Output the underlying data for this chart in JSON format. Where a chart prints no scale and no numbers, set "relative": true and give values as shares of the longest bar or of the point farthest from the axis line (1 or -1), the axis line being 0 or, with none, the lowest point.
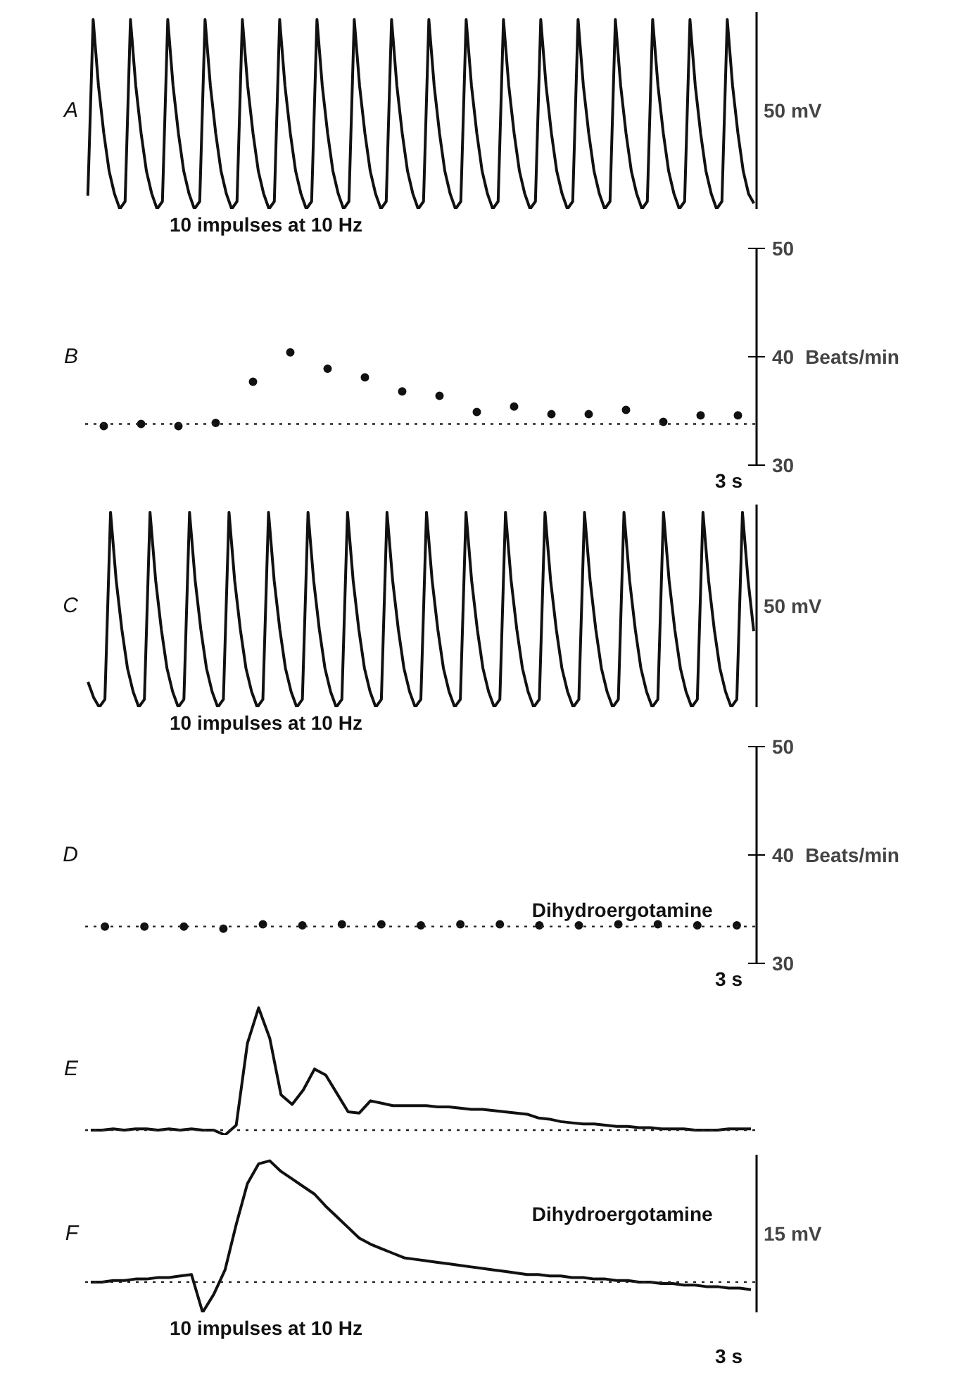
{
  "chart_data": [
    {
      "type": "line",
      "title": "A",
      "ylabel": "50 mV",
      "relative": true,
      "tick_labels": false,
      "annotations": [
        "10 impulses at 10 Hz"
      ],
      "categories": [
        null,
        null,
        null,
        null,
        null,
        null,
        null,
        null,
        null,
        null,
        null,
        null,
        null,
        null,
        null,
        null,
        null,
        null,
        null,
        null,
        null,
        null,
        null,
        null,
        null,
        null,
        null,
        null,
        null,
        null,
        null,
        null,
        null,
        null,
        null,
        null,
        null,
        null,
        null,
        null,
        null,
        null,
        null,
        null,
        null,
        null,
        null,
        null,
        null,
        null,
        null,
        null,
        null,
        null,
        null,
        null,
        null,
        null,
        null,
        null,
        null,
        null,
        null,
        null,
        null,
        null,
        null,
        null,
        null,
        null,
        null,
        null,
        null,
        null,
        null,
        null,
        null,
        null,
        null,
        null,
        null,
        null,
        null,
        null,
        null,
        null,
        null,
        null,
        null,
        null,
        null,
        null,
        null,
        null,
        null,
        null,
        null,
        null,
        null,
        null,
        null,
        null,
        null,
        null,
        null,
        null,
        null,
        null,
        null,
        null,
        null,
        null,
        null,
        null,
        null,
        null,
        null,
        null,
        null,
        null,
        null,
        null,
        null,
        null,
        null,
        null
      ],
      "series": [
        {
          "color": "#111111",
          "values": [
            0.07,
            1,
            0.65,
            0.4,
            0.2,
            0.08,
            0,
            0.04,
            1,
            0.65,
            0.4,
            0.2,
            0.08,
            0,
            0.04,
            1,
            0.65,
            0.4,
            0.2,
            0.08,
            0,
            0.04,
            1,
            0.65,
            0.4,
            0.2,
            0.08,
            0,
            0.04,
            1,
            0.65,
            0.4,
            0.2,
            0.08,
            0,
            0.04,
            1,
            0.65,
            0.4,
            0.2,
            0.08,
            0,
            0.04,
            1,
            0.65,
            0.4,
            0.2,
            0.08,
            0,
            0.04,
            1,
            0.65,
            0.4,
            0.2,
            0.08,
            0,
            0.04,
            1,
            0.65,
            0.4,
            0.2,
            0.08,
            0,
            0.04,
            1,
            0.65,
            0.4,
            0.2,
            0.08,
            0,
            0.04,
            1,
            0.65,
            0.4,
            0.2,
            0.08,
            0,
            0.04,
            1,
            0.65,
            0.4,
            0.2,
            0.08,
            0,
            0.04,
            1,
            0.65,
            0.4,
            0.2,
            0.08,
            0,
            0.04,
            1,
            0.65,
            0.4,
            0.2,
            0.08,
            0,
            0.04,
            1,
            0.65,
            0.4,
            0.2,
            0.08,
            0,
            0.04,
            1,
            0.65,
            0.4,
            0.2,
            0.08,
            0,
            0.04,
            1,
            0.65,
            0.4,
            0.2,
            0.08,
            0,
            0.04,
            1,
            0.65,
            0.4,
            0.2,
            0.08,
            0.03
          ]
        }
      ]
    },
    {
      "type": "scatter",
      "title": "B",
      "ylabel": "Beats/min",
      "ylim": [
        30,
        50
      ],
      "yticks": [
        30,
        40,
        50
      ],
      "tick_labels": "y",
      "marker": "circle",
      "annotations": [
        "3 s"
      ],
      "ref_lines": [
        {
          "axis": "y",
          "value": 33.8,
          "line_style": "dotted"
        }
      ],
      "categories": [
        null,
        null,
        null,
        null,
        null,
        null,
        null,
        null,
        null,
        null,
        null,
        null,
        null,
        null,
        null,
        null,
        null,
        null
      ],
      "series": [
        {
          "color": "#111111",
          "values": [
            33.6,
            33.8,
            33.6,
            33.9,
            37.7,
            40.4,
            38.9,
            38.1,
            36.8,
            36.4,
            34.9,
            35.4,
            34.7,
            34.7,
            35.1,
            34.0,
            34.6,
            34.6
          ]
        }
      ]
    },
    {
      "type": "line",
      "title": "C",
      "ylabel": "50 mV",
      "relative": true,
      "tick_labels": false,
      "annotations": [
        "10 impulses at 10 Hz"
      ],
      "categories": [
        null,
        null,
        null,
        null,
        null,
        null,
        null,
        null,
        null,
        null,
        null,
        null,
        null,
        null,
        null,
        null,
        null,
        null,
        null,
        null,
        null,
        null,
        null,
        null,
        null,
        null,
        null,
        null,
        null,
        null,
        null,
        null,
        null,
        null,
        null,
        null,
        null,
        null,
        null,
        null,
        null,
        null,
        null,
        null,
        null,
        null,
        null,
        null,
        null,
        null,
        null,
        null,
        null,
        null,
        null,
        null,
        null,
        null,
        null,
        null,
        null,
        null,
        null,
        null,
        null,
        null,
        null,
        null,
        null,
        null,
        null,
        null,
        null,
        null,
        null,
        null,
        null,
        null,
        null,
        null,
        null,
        null,
        null,
        null,
        null,
        null,
        null,
        null,
        null,
        null,
        null,
        null,
        null,
        null,
        null,
        null,
        null,
        null,
        null,
        null,
        null,
        null,
        null,
        null,
        null,
        null,
        null,
        null,
        null,
        null,
        null,
        null,
        null,
        null,
        null,
        null,
        null,
        null,
        null
      ],
      "series": [
        {
          "color": "#111111",
          "values": [
            0.13,
            0.05,
            0,
            0.04,
            1,
            0.65,
            0.4,
            0.2,
            0.08,
            0,
            0.04,
            1,
            0.65,
            0.4,
            0.2,
            0.08,
            0,
            0.04,
            1,
            0.65,
            0.4,
            0.2,
            0.08,
            0,
            0.04,
            1,
            0.65,
            0.4,
            0.2,
            0.08,
            0,
            0.04,
            1,
            0.65,
            0.4,
            0.2,
            0.08,
            0,
            0.04,
            1,
            0.65,
            0.4,
            0.2,
            0.08,
            0,
            0.04,
            1,
            0.65,
            0.4,
            0.2,
            0.08,
            0,
            0.04,
            1,
            0.65,
            0.4,
            0.2,
            0.08,
            0,
            0.04,
            1,
            0.65,
            0.4,
            0.2,
            0.08,
            0,
            0.04,
            1,
            0.65,
            0.4,
            0.2,
            0.08,
            0,
            0.04,
            1,
            0.65,
            0.4,
            0.2,
            0.08,
            0,
            0.04,
            1,
            0.65,
            0.4,
            0.2,
            0.08,
            0,
            0.04,
            1,
            0.65,
            0.4,
            0.2,
            0.08,
            0,
            0.04,
            1,
            0.65,
            0.4,
            0.2,
            0.08,
            0,
            0.04,
            1,
            0.65,
            0.4,
            0.2,
            0.08,
            0,
            0.04,
            1,
            0.65,
            0.4,
            0.2,
            0.08,
            0,
            0.04,
            1,
            0.65,
            0.39
          ]
        }
      ]
    },
    {
      "type": "scatter",
      "title": "D",
      "ylabel": "Beats/min",
      "ylim": [
        30,
        50
      ],
      "yticks": [
        30,
        40,
        50
      ],
      "tick_labels": "y",
      "marker": "circle",
      "annotations": [
        "Dihydroergotamine",
        "3 s"
      ],
      "ref_lines": [
        {
          "axis": "y",
          "value": 33.4,
          "line_style": "dotted"
        }
      ],
      "categories": [
        null,
        null,
        null,
        null,
        null,
        null,
        null,
        null,
        null,
        null,
        null,
        null,
        null,
        null,
        null,
        null,
        null
      ],
      "series": [
        {
          "color": "#111111",
          "values": [
            33.4,
            33.4,
            33.4,
            33.2,
            33.6,
            33.5,
            33.6,
            33.6,
            33.5,
            33.6,
            33.6,
            33.5,
            33.5,
            33.6,
            33.6,
            33.5,
            33.5
          ]
        }
      ]
    },
    {
      "type": "line",
      "title": "E",
      "relative": true,
      "tick_labels": false,
      "ref_lines": [
        {
          "axis": "y",
          "value": 0,
          "line_style": "dotted"
        }
      ],
      "categories": [
        null,
        null,
        null,
        null,
        null,
        null,
        null,
        null,
        null,
        null,
        null,
        null,
        null,
        null,
        null,
        null,
        null,
        null,
        null,
        null,
        null,
        null,
        null,
        null,
        null,
        null,
        null,
        null,
        null,
        null,
        null,
        null,
        null,
        null,
        null,
        null,
        null,
        null,
        null,
        null,
        null,
        null,
        null,
        null,
        null,
        null,
        null,
        null,
        null,
        null,
        null,
        null,
        null,
        null,
        null,
        null,
        null,
        null,
        null,
        null
      ],
      "series": [
        {
          "color": "#111111",
          "values": [
            0,
            0,
            0.01,
            0,
            0.01,
            0.01,
            0,
            0.01,
            0,
            0.01,
            0,
            0,
            -0.04,
            0.04,
            0.71,
            1,
            0.75,
            0.29,
            0.21,
            0.33,
            0.5,
            0.45,
            0.3,
            0.15,
            0.14,
            0.24,
            0.22,
            0.2,
            0.2,
            0.2,
            0.2,
            0.19,
            0.19,
            0.18,
            0.17,
            0.17,
            0.16,
            0.15,
            0.14,
            0.13,
            0.1,
            0.09,
            0.07,
            0.06,
            0.05,
            0.05,
            0.04,
            0.03,
            0.03,
            0.02,
            0.02,
            0.01,
            0.01,
            0.01,
            0,
            0,
            0,
            0.01,
            0.01,
            0.01
          ]
        }
      ]
    },
    {
      "type": "line",
      "title": "F",
      "ylabel": "15 mV",
      "relative": true,
      "tick_labels": false,
      "annotations": [
        "Dihydroergotamine",
        "10 impulses at 10 Hz",
        "3 s"
      ],
      "ref_lines": [
        {
          "axis": "y",
          "value": 0.2,
          "line_style": "dotted"
        }
      ],
      "categories": [
        null,
        null,
        null,
        null,
        null,
        null,
        null,
        null,
        null,
        null,
        null,
        null,
        null,
        null,
        null,
        null,
        null,
        null,
        null,
        null,
        null,
        null,
        null,
        null,
        null,
        null,
        null,
        null,
        null,
        null,
        null,
        null,
        null,
        null,
        null,
        null,
        null,
        null,
        null,
        null,
        null,
        null,
        null,
        null,
        null,
        null,
        null,
        null,
        null,
        null,
        null,
        null,
        null,
        null,
        null,
        null,
        null,
        null,
        null,
        null
      ],
      "series": [
        {
          "color": "#111111",
          "values": [
            0.2,
            0.2,
            0.21,
            0.21,
            0.22,
            0.22,
            0.23,
            0.23,
            0.24,
            0.25,
            0,
            0.12,
            0.28,
            0.58,
            0.85,
            0.98,
            1,
            0.93,
            0.88,
            0.83,
            0.78,
            0.7,
            0.63,
            0.56,
            0.49,
            0.45,
            0.42,
            0.39,
            0.36,
            0.35,
            0.34,
            0.33,
            0.32,
            0.31,
            0.3,
            0.29,
            0.28,
            0.27,
            0.26,
            0.25,
            0.25,
            0.24,
            0.24,
            0.23,
            0.23,
            0.22,
            0.22,
            0.21,
            0.21,
            0.2,
            0.2,
            0.19,
            0.19,
            0.18,
            0.18,
            0.17,
            0.17,
            0.16,
            0.16,
            0.15
          ]
        }
      ]
    }
  ]
}
